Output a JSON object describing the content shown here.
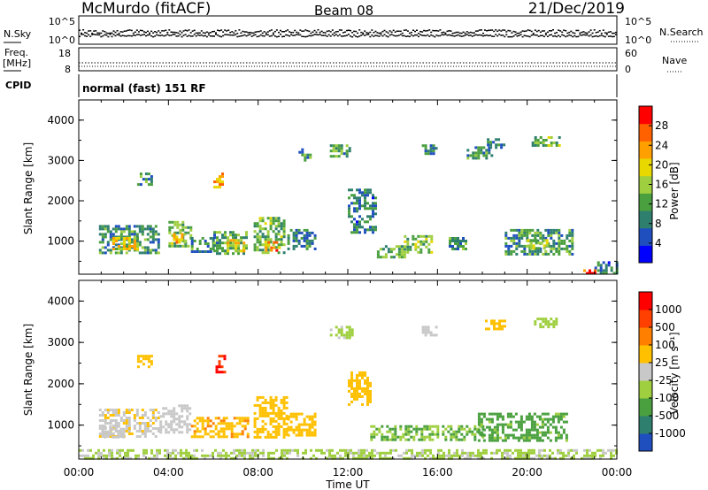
{
  "header": {
    "station": "McMurdo (fitACF)",
    "beam": "Beam 08",
    "date": "21/Dec/2019"
  },
  "status_panels": {
    "nsky_label": "N.Sky",
    "nsky_ticks": [
      "10^5",
      "10^0"
    ],
    "nsearch_label": "N.Search",
    "nsearch_ticks": [
      "10^5",
      "10^0"
    ],
    "freq_label": [
      "Freq.",
      "[MHz]"
    ],
    "freq_ticks": [
      "18",
      "8"
    ],
    "nave_label": "Nave",
    "nave_ticks": [
      "60",
      "0"
    ],
    "cpid_label": "CPID",
    "cpid_text": "normal (fast) 151 RF"
  },
  "chart_data": [
    {
      "type": "heatmap",
      "panel": "power",
      "ylabel": "Slant Range [km]",
      "yticks": [
        "4000",
        "3000",
        "2000",
        "1000"
      ],
      "ylim": [
        180,
        4500
      ],
      "xlim_hours": [
        0,
        24
      ],
      "colorbar_label": "Power [dB]",
      "colorbar_ticks": [
        "28",
        "24",
        "20",
        "16",
        "12",
        "8",
        "4"
      ],
      "colorbar_colors": [
        "#0000ff",
        "#1f4fbf",
        "#2f7f6f",
        "#4a9f3f",
        "#9fcf3f",
        "#e8d800",
        "#ffa000",
        "#ff6000",
        "#ff0000"
      ],
      "clim": [
        0,
        30
      ],
      "regions": [
        {
          "t": [
            0.9,
            3.6
          ],
          "r": [
            700,
            1400
          ],
          "v": 10
        },
        {
          "t": [
            1.5,
            2.6
          ],
          "r": [
            800,
            1100
          ],
          "v": 18
        },
        {
          "t": [
            2.6,
            3.3
          ],
          "r": [
            2400,
            2700
          ],
          "v": 9
        },
        {
          "t": [
            4.0,
            5.0
          ],
          "r": [
            900,
            1500
          ],
          "v": 12
        },
        {
          "t": [
            4.2,
            4.7
          ],
          "r": [
            1000,
            1200
          ],
          "v": 20
        },
        {
          "t": [
            5.0,
            6.0
          ],
          "r": [
            750,
            1100
          ],
          "v": 9
        },
        {
          "t": [
            6.0,
            6.4
          ],
          "r": [
            2300,
            2700
          ],
          "v": 22
        },
        {
          "t": [
            6.0,
            7.5
          ],
          "r": [
            700,
            1250
          ],
          "v": 11
        },
        {
          "t": [
            6.6,
            7.4
          ],
          "r": [
            750,
            1050
          ],
          "v": 19
        },
        {
          "t": [
            7.8,
            9.2
          ],
          "r": [
            700,
            1600
          ],
          "v": 12
        },
        {
          "t": [
            8.3,
            9.0
          ],
          "r": [
            750,
            1000
          ],
          "v": 22
        },
        {
          "t": [
            9.3,
            10.6
          ],
          "r": [
            800,
            1300
          ],
          "v": 9
        },
        {
          "t": [
            9.8,
            10.3
          ],
          "r": [
            3000,
            3300
          ],
          "v": 10
        },
        {
          "t": [
            11.2,
            12.1
          ],
          "r": [
            3100,
            3400
          ],
          "v": 11
        },
        {
          "t": [
            12.0,
            13.2
          ],
          "r": [
            1200,
            2300
          ],
          "v": 8
        },
        {
          "t": [
            13.3,
            14.5
          ],
          "r": [
            600,
            900
          ],
          "v": 12
        },
        {
          "t": [
            14.5,
            15.8
          ],
          "r": [
            750,
            1150
          ],
          "v": 14
        },
        {
          "t": [
            15.3,
            16.0
          ],
          "r": [
            3200,
            3400
          ],
          "v": 9
        },
        {
          "t": [
            16.5,
            17.3
          ],
          "r": [
            800,
            1100
          ],
          "v": 10
        },
        {
          "t": [
            17.3,
            18.4
          ],
          "r": [
            3050,
            3350
          ],
          "v": 9
        },
        {
          "t": [
            18.2,
            19.0
          ],
          "r": [
            3350,
            3550
          ],
          "v": 10
        },
        {
          "t": [
            19.0,
            22.0
          ],
          "r": [
            700,
            1300
          ],
          "v": 10
        },
        {
          "t": [
            20.0,
            20.9
          ],
          "r": [
            800,
            1050
          ],
          "v": 15
        },
        {
          "t": [
            20.2,
            21.4
          ],
          "r": [
            3400,
            3600
          ],
          "v": 12
        },
        {
          "t": [
            23.0,
            24.0
          ],
          "r": [
            220,
            500
          ],
          "v": 8
        },
        {
          "t": [
            22.5,
            23.1
          ],
          "r": [
            200,
            300
          ],
          "v": 26
        }
      ]
    },
    {
      "type": "heatmap",
      "panel": "velocity",
      "ylabel": "Slant Range [km]",
      "yticks": [
        "4000",
        "3000",
        "2000",
        "1000"
      ],
      "ylim": [
        180,
        4500
      ],
      "xlim_hours": [
        0,
        24
      ],
      "xticks": [
        "00:00",
        "04:00",
        "08:00",
        "12:00",
        "16:00",
        "20:00",
        "00:00"
      ],
      "xlabel": "Time UT",
      "colorbar_label": "Velocity [m s⁻¹]",
      "colorbar_ticks": [
        "1000",
        "500",
        "100",
        "25",
        "-25",
        "-100",
        "-500",
        "-1000"
      ],
      "colorbar_colors": [
        "#1f4fbf",
        "#2f7f6f",
        "#4aa03f",
        "#9fcf3f",
        "#c8c8c8",
        "#ffc000",
        "#ff8000",
        "#ff4000",
        "#ff0000"
      ],
      "clim": [
        -1200,
        1200
      ],
      "regions": [
        {
          "t": [
            0.9,
            3.6
          ],
          "r": [
            700,
            1400
          ],
          "v": 120
        },
        {
          "t": [
            1.0,
            2.0
          ],
          "r": [
            700,
            1000
          ],
          "v": 60
        },
        {
          "t": [
            2.6,
            3.3
          ],
          "r": [
            2400,
            2700
          ],
          "v": 250
        },
        {
          "t": [
            3.6,
            5.0
          ],
          "r": [
            800,
            1500
          ],
          "v": 0
        },
        {
          "t": [
            5.0,
            7.5
          ],
          "r": [
            700,
            1200
          ],
          "v": 350
        },
        {
          "t": [
            6.1,
            6.5
          ],
          "r": [
            2300,
            2700
          ],
          "v": 900
        },
        {
          "t": [
            7.8,
            9.3
          ],
          "r": [
            700,
            1700
          ],
          "v": 300
        },
        {
          "t": [
            9.3,
            10.6
          ],
          "r": [
            750,
            1300
          ],
          "v": 300
        },
        {
          "t": [
            11.2,
            12.2
          ],
          "r": [
            3100,
            3400
          ],
          "v": -150
        },
        {
          "t": [
            12.0,
            13.0
          ],
          "r": [
            1500,
            2300
          ],
          "v": 250
        },
        {
          "t": [
            13.0,
            18.0
          ],
          "r": [
            650,
            1000
          ],
          "v": -400
        },
        {
          "t": [
            15.3,
            16.0
          ],
          "r": [
            3200,
            3400
          ],
          "v": 0
        },
        {
          "t": [
            18.0,
            19.0
          ],
          "r": [
            3350,
            3550
          ],
          "v": 200
        },
        {
          "t": [
            17.8,
            21.8
          ],
          "r": [
            650,
            1300
          ],
          "v": -500
        },
        {
          "t": [
            20.3,
            21.3
          ],
          "r": [
            3400,
            3600
          ],
          "v": -300
        },
        {
          "t": [
            0.0,
            24.0
          ],
          "r": [
            180,
            420
          ],
          "v": -150
        }
      ]
    }
  ]
}
